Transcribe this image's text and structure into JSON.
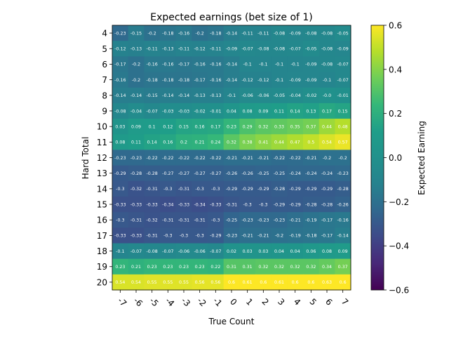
{
  "chart_data": {
    "type": "heatmap",
    "title": "Expected earnings (bet size of 1)",
    "xlabel": "True Count",
    "ylabel": "Hard Total",
    "x": [
      "-7",
      "-6",
      "-5",
      "-4",
      "-3",
      "-2",
      "-1",
      "0",
      "1",
      "2",
      "3",
      "4",
      "5",
      "6",
      "7"
    ],
    "y": [
      "4",
      "5",
      "6",
      "7",
      "8",
      "9",
      "10",
      "11",
      "12",
      "13",
      "14",
      "15",
      "16",
      "17",
      "18",
      "19",
      "20"
    ],
    "values": [
      [
        "-0.23",
        "-0.15",
        "-0.2",
        "-0.18",
        "-0.16",
        "-0.2",
        "-0.18",
        "-0.14",
        "-0.11",
        "-0.11",
        "-0.08",
        "-0.09",
        "-0.08",
        "-0.08",
        "-0.05"
      ],
      [
        "-0.12",
        "-0.13",
        "-0.11",
        "-0.13",
        "-0.11",
        "-0.12",
        "-0.11",
        "-0.09",
        "-0.07",
        "-0.08",
        "-0.08",
        "-0.07",
        "-0.05",
        "-0.08",
        "-0.09"
      ],
      [
        "-0.17",
        "-0.2",
        "-0.16",
        "-0.16",
        "-0.17",
        "-0.16",
        "-0.16",
        "-0.14",
        "-0.1",
        "-0.1",
        "-0.1",
        "-0.1",
        "-0.09",
        "-0.08",
        "-0.07"
      ],
      [
        "-0.16",
        "-0.2",
        "-0.18",
        "-0.18",
        "-0.18",
        "-0.17",
        "-0.16",
        "-0.14",
        "-0.12",
        "-0.12",
        "-0.1",
        "-0.09",
        "-0.09",
        "-0.1",
        "-0.07"
      ],
      [
        "-0.14",
        "-0.14",
        "-0.15",
        "-0.14",
        "-0.14",
        "-0.13",
        "-0.13",
        "-0.1",
        "-0.06",
        "-0.06",
        "-0.05",
        "-0.04",
        "-0.02",
        "-0.0",
        "-0.01"
      ],
      [
        "-0.08",
        "-0.04",
        "-0.07",
        "-0.03",
        "-0.03",
        "-0.02",
        "-0.01",
        "0.04",
        "0.08",
        "0.09",
        "0.11",
        "0.14",
        "0.13",
        "0.17",
        "0.15"
      ],
      [
        "0.03",
        "0.09",
        "0.1",
        "0.12",
        "0.15",
        "0.16",
        "0.17",
        "0.23",
        "0.29",
        "0.32",
        "0.33",
        "0.35",
        "0.37",
        "0.44",
        "0.48"
      ],
      [
        "0.08",
        "0.11",
        "0.14",
        "0.16",
        "0.2",
        "0.21",
        "0.24",
        "0.32",
        "0.38",
        "0.41",
        "0.44",
        "0.47",
        "0.5",
        "0.54",
        "0.57"
      ],
      [
        "-0.23",
        "-0.23",
        "-0.22",
        "-0.22",
        "-0.22",
        "-0.22",
        "-0.22",
        "-0.21",
        "-0.21",
        "-0.21",
        "-0.22",
        "-0.22",
        "-0.21",
        "-0.2",
        "-0.2"
      ],
      [
        "-0.29",
        "-0.28",
        "-0.28",
        "-0.27",
        "-0.27",
        "-0.27",
        "-0.27",
        "-0.26",
        "-0.26",
        "-0.25",
        "-0.25",
        "-0.24",
        "-0.24",
        "-0.24",
        "-0.23"
      ],
      [
        "-0.3",
        "-0.32",
        "-0.31",
        "-0.3",
        "-0.31",
        "-0.3",
        "-0.3",
        "-0.29",
        "-0.29",
        "-0.29",
        "-0.28",
        "-0.29",
        "-0.29",
        "-0.29",
        "-0.28"
      ],
      [
        "-0.33",
        "-0.33",
        "-0.33",
        "-0.34",
        "-0.33",
        "-0.34",
        "-0.33",
        "-0.31",
        "-0.3",
        "-0.3",
        "-0.29",
        "-0.29",
        "-0.28",
        "-0.28",
        "-0.26"
      ],
      [
        "-0.3",
        "-0.31",
        "-0.32",
        "-0.31",
        "-0.31",
        "-0.31",
        "-0.3",
        "-0.25",
        "-0.23",
        "-0.23",
        "-0.23",
        "-0.21",
        "-0.19",
        "-0.17",
        "-0.16"
      ],
      [
        "-0.33",
        "-0.33",
        "-0.31",
        "-0.3",
        "-0.3",
        "-0.3",
        "-0.29",
        "-0.23",
        "-0.21",
        "-0.21",
        "-0.2",
        "-0.19",
        "-0.18",
        "-0.17",
        "-0.14"
      ],
      [
        "-0.1",
        "-0.07",
        "-0.08",
        "-0.07",
        "-0.06",
        "-0.06",
        "-0.07",
        "0.02",
        "0.03",
        "0.03",
        "0.04",
        "0.04",
        "0.06",
        "0.08",
        "0.09"
      ],
      [
        "0.23",
        "0.21",
        "0.23",
        "0.23",
        "0.23",
        "0.23",
        "0.22",
        "0.31",
        "0.31",
        "0.32",
        "0.32",
        "0.32",
        "0.32",
        "0.34",
        "0.37"
      ],
      [
        "0.54",
        "0.54",
        "0.55",
        "0.55",
        "0.55",
        "0.56",
        "0.56",
        "0.6",
        "0.61",
        "0.6",
        "0.61",
        "0.6",
        "0.6",
        "0.63",
        "0.6"
      ]
    ],
    "colormap": "viridis",
    "color_range": [
      -0.6,
      0.6
    ],
    "colorbar": {
      "label": "Expected Earning",
      "ticks": [
        "0.6",
        "0.4",
        "0.2",
        "0.0",
        "−0.2",
        "−0.4",
        "−0.6"
      ],
      "tick_values": [
        0.6,
        0.4,
        0.2,
        0.0,
        -0.2,
        -0.4,
        -0.6
      ]
    }
  }
}
